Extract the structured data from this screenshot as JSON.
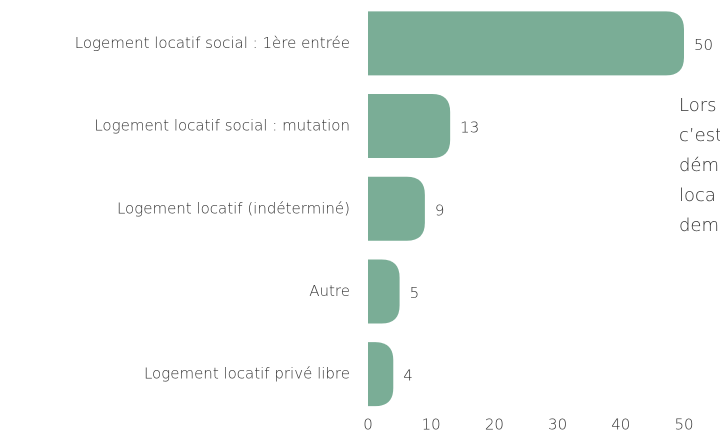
{
  "chart_data": {
    "type": "bar",
    "orientation": "horizontal",
    "categories": [
      "Logement locatif social : 1ère entrée",
      "Logement locatif social : mutation",
      "Logement locatif (indéterminé)",
      "Autre",
      "Logement locatif privé libre"
    ],
    "values": [
      50,
      13,
      9,
      5,
      4
    ],
    "color": "#7aad96",
    "xlim": [
      0,
      50
    ],
    "xticks": [
      0,
      10,
      20,
      30,
      40,
      50
    ],
    "annotation_lines": [
      "Lors",
      "c’est",
      "dém",
      "loca",
      "dem"
    ]
  }
}
